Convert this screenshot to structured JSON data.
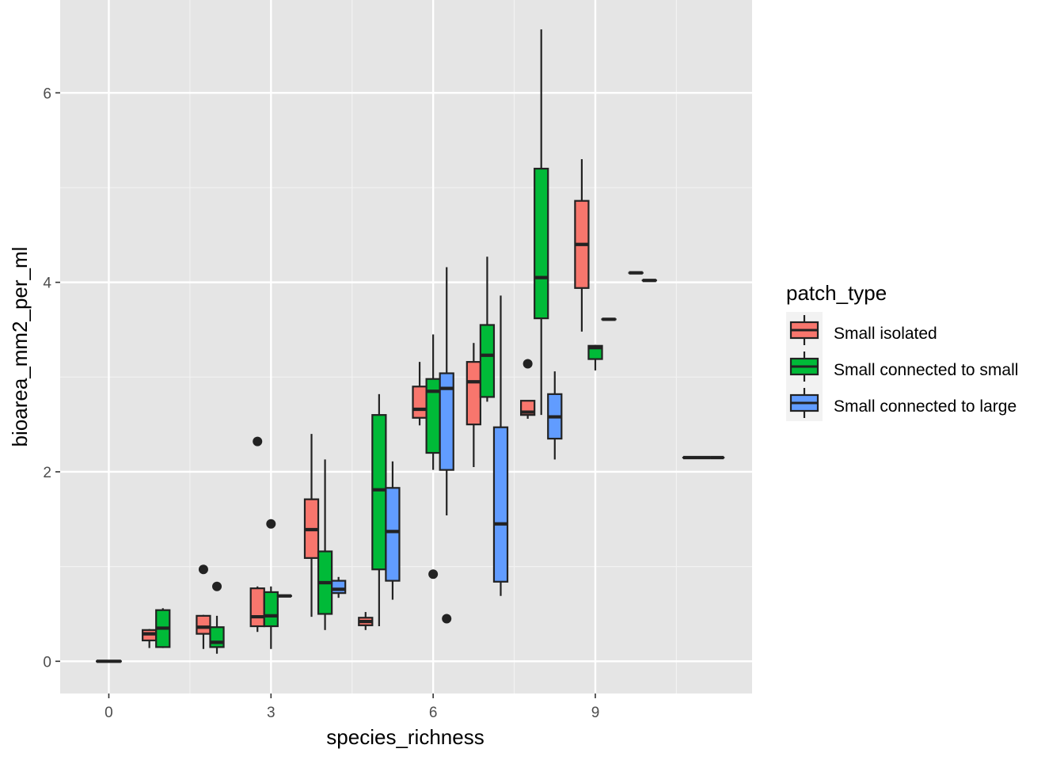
{
  "chart_data": {
    "type": "boxplot",
    "xlabel": "species_richness",
    "ylabel": "bioarea_mm2_per_ml",
    "xlim": [
      -0.9,
      11.9
    ],
    "ylim": [
      -0.34,
      6.98
    ],
    "x_ticks": [
      0,
      3,
      6,
      9
    ],
    "y_ticks": [
      0,
      2,
      4,
      6
    ],
    "grid": true,
    "panel_background": "#E5E5E5",
    "legend": {
      "title": "patch_type",
      "position": "right",
      "entries": [
        {
          "name": "Small isolated",
          "color": "#F8766D"
        },
        {
          "name": "Small connected to small",
          "color": "#00BA38"
        },
        {
          "name": "Small connected to large",
          "color": "#619CFF"
        }
      ]
    },
    "groups": [
      {
        "x": 0,
        "boxes": [
          {
            "series": 0,
            "lower": 0,
            "q1": 0,
            "median": 0,
            "q3": 0,
            "upper": 0,
            "outliers": []
          }
        ]
      },
      {
        "x": 1,
        "boxes": [
          {
            "series": 0,
            "lower": 0.14,
            "q1": 0.22,
            "median": 0.29,
            "q3": 0.33,
            "upper": 0.34,
            "outliers": []
          },
          {
            "series": 1,
            "lower": 0.14,
            "q1": 0.15,
            "median": 0.35,
            "q3": 0.54,
            "upper": 0.56,
            "outliers": []
          }
        ]
      },
      {
        "x": 2,
        "boxes": [
          {
            "series": 0,
            "lower": 0.13,
            "q1": 0.29,
            "median": 0.36,
            "q3": 0.48,
            "upper": 0.49,
            "outliers": [
              0.97
            ]
          },
          {
            "series": 1,
            "lower": 0.08,
            "q1": 0.15,
            "median": 0.2,
            "q3": 0.36,
            "upper": 0.48,
            "outliers": [
              0.79
            ]
          }
        ]
      },
      {
        "x": 3,
        "boxes": [
          {
            "series": 0,
            "lower": 0.31,
            "q1": 0.37,
            "median": 0.47,
            "q3": 0.77,
            "upper": 0.79,
            "outliers": [
              2.32
            ]
          },
          {
            "series": 1,
            "lower": 0.13,
            "q1": 0.37,
            "median": 0.48,
            "q3": 0.73,
            "upper": 0.79,
            "outliers": [
              1.45
            ]
          },
          {
            "series": 2,
            "lower": 0.69,
            "q1": 0.69,
            "median": 0.69,
            "q3": 0.69,
            "upper": 0.69,
            "outliers": []
          }
        ]
      },
      {
        "x": 4,
        "boxes": [
          {
            "series": 0,
            "lower": 0.47,
            "q1": 1.09,
            "median": 1.39,
            "q3": 1.71,
            "upper": 2.4,
            "outliers": []
          },
          {
            "series": 1,
            "lower": 0.33,
            "q1": 0.5,
            "median": 0.83,
            "q3": 1.16,
            "upper": 2.13,
            "outliers": []
          },
          {
            "series": 2,
            "lower": 0.67,
            "q1": 0.72,
            "median": 0.76,
            "q3": 0.85,
            "upper": 0.89,
            "outliers": []
          }
        ]
      },
      {
        "x": 5,
        "boxes": [
          {
            "series": 0,
            "lower": 0.33,
            "q1": 0.38,
            "median": 0.42,
            "q3": 0.46,
            "upper": 0.52,
            "outliers": []
          },
          {
            "series": 1,
            "lower": 0.37,
            "q1": 0.97,
            "median": 1.81,
            "q3": 2.6,
            "upper": 2.82,
            "outliers": []
          },
          {
            "series": 2,
            "lower": 0.65,
            "q1": 0.85,
            "median": 1.37,
            "q3": 1.83,
            "upper": 2.11,
            "outliers": []
          }
        ]
      },
      {
        "x": 6,
        "boxes": [
          {
            "series": 0,
            "lower": 2.49,
            "q1": 2.57,
            "median": 2.66,
            "q3": 2.9,
            "upper": 3.16,
            "outliers": []
          },
          {
            "series": 1,
            "lower": 2.02,
            "q1": 2.2,
            "median": 2.85,
            "q3": 2.98,
            "upper": 3.45,
            "outliers": [
              0.92
            ]
          },
          {
            "series": 2,
            "lower": 1.54,
            "q1": 2.02,
            "median": 2.88,
            "q3": 3.04,
            "upper": 4.16,
            "outliers": [
              0.45
            ]
          }
        ]
      },
      {
        "x": 7,
        "boxes": [
          {
            "series": 0,
            "lower": 2.05,
            "q1": 2.5,
            "median": 2.95,
            "q3": 3.16,
            "upper": 3.36,
            "outliers": []
          },
          {
            "series": 1,
            "lower": 2.74,
            "q1": 2.79,
            "median": 3.23,
            "q3": 3.55,
            "upper": 4.27,
            "outliers": []
          },
          {
            "series": 2,
            "lower": 0.69,
            "q1": 0.84,
            "median": 1.45,
            "q3": 2.47,
            "upper": 3.86,
            "outliers": []
          }
        ]
      },
      {
        "x": 8,
        "boxes": [
          {
            "series": 0,
            "lower": 2.56,
            "q1": 2.6,
            "median": 2.63,
            "q3": 2.75,
            "upper": 2.75,
            "outliers": [
              3.14
            ]
          },
          {
            "series": 1,
            "lower": 2.6,
            "q1": 3.62,
            "median": 4.05,
            "q3": 5.2,
            "upper": 6.67,
            "outliers": []
          },
          {
            "series": 2,
            "lower": 2.13,
            "q1": 2.35,
            "median": 2.58,
            "q3": 2.82,
            "upper": 3.06,
            "outliers": []
          }
        ]
      },
      {
        "x": 9,
        "boxes": [
          {
            "series": 0,
            "lower": 3.48,
            "q1": 3.94,
            "median": 4.4,
            "q3": 4.86,
            "upper": 5.3,
            "outliers": []
          },
          {
            "series": 1,
            "lower": 3.07,
            "q1": 3.19,
            "median": 3.31,
            "q3": 3.33,
            "upper": 3.34,
            "outliers": []
          },
          {
            "series": 2,
            "lower": 3.61,
            "q1": 3.61,
            "median": 3.61,
            "q3": 3.61,
            "upper": 3.61,
            "outliers": []
          }
        ]
      },
      {
        "x": 10,
        "boxes": [
          {
            "series": 0,
            "lower": 4.1,
            "q1": 4.1,
            "median": 4.1,
            "q3": 4.1,
            "upper": 4.1,
            "outliers": []
          },
          {
            "series": 1,
            "lower": 4.02,
            "q1": 4.02,
            "median": 4.02,
            "q3": 4.02,
            "upper": 4.02,
            "outliers": []
          }
        ]
      },
      {
        "x": 11,
        "boxes": [
          {
            "series": 0,
            "lower": 2.15,
            "q1": 2.15,
            "median": 2.15,
            "q3": 2.15,
            "upper": 2.15,
            "outliers": []
          },
          {
            "series": 1,
            "lower": 2.15,
            "q1": 2.15,
            "median": 2.15,
            "q3": 2.15,
            "upper": 2.15,
            "outliers": []
          },
          {
            "series": 2,
            "lower": 2.15,
            "q1": 2.15,
            "median": 2.15,
            "q3": 2.15,
            "upper": 2.15,
            "outliers": []
          }
        ]
      }
    ]
  }
}
